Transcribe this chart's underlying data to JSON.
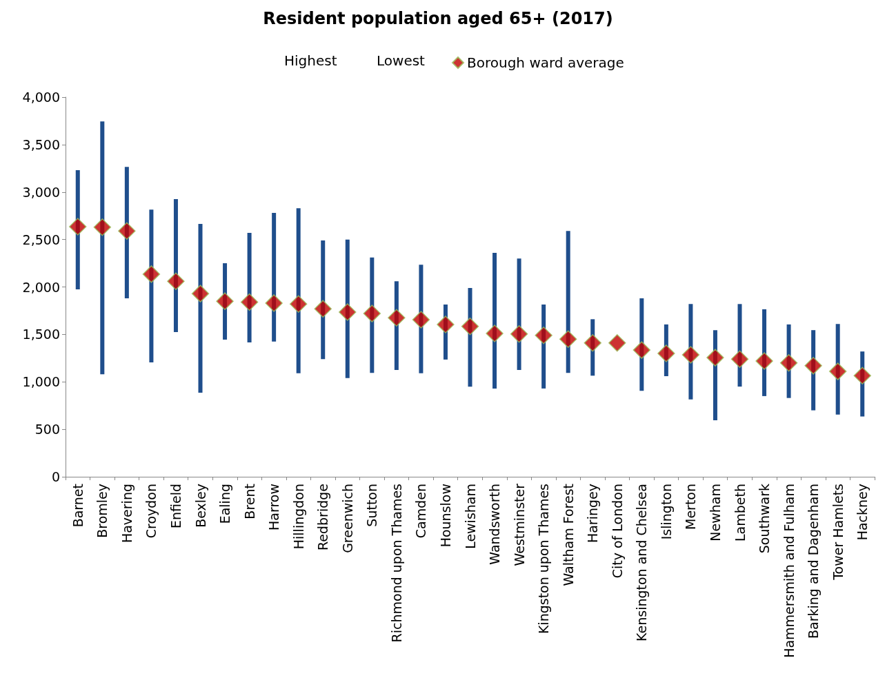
{
  "chart_data": {
    "type": "scatter",
    "title": "Resident population aged 65+ (2017)",
    "annotations": [
      "Highest",
      "Lowest"
    ],
    "categories": [
      "Barnet",
      "Bromley",
      "Havering",
      "Croydon",
      "Enfield",
      "Bexley",
      "Ealing",
      "Brent",
      "Harrow",
      "Hillingdon",
      "Redbridge",
      "Greenwich",
      "Sutton",
      "Richmond upon Thames",
      "Camden",
      "Hounslow",
      "Lewisham",
      "Wandsworth",
      "Westminster",
      "Kingston upon Thames",
      "Waltham Forest",
      "Haringey",
      "City of London",
      "Kensington and Chelsea",
      "Islington",
      "Merton",
      "Newham",
      "Lambeth",
      "Southwark",
      "Hammersmith and Fulham",
      "Barking and Dagenham",
      "Tower Hamlets",
      "Hackney"
    ],
    "series": [
      {
        "type": "bar",
        "color": "#1f4e8c",
        "base": [
          1975,
          1080,
          1880,
          1205,
          1525,
          885,
          1445,
          1415,
          1425,
          1090,
          1240,
          1040,
          1095,
          1125,
          1090,
          1235,
          950,
          930,
          1125,
          930,
          1095,
          1065,
          null,
          905,
          1060,
          815,
          595,
          950,
          850,
          830,
          700,
          655,
          635
        ],
        "values": [
          1255,
          2665,
          1385,
          1610,
          1400,
          1780,
          805,
          1155,
          1355,
          1740,
          1250,
          1460,
          1215,
          935,
          1145,
          580,
          1040,
          1430,
          1175,
          885,
          1495,
          595,
          null,
          975,
          545,
          1005,
          950,
          870,
          915,
          775,
          845,
          955,
          685
        ]
      },
      {
        "name": "Borough ward average",
        "color": "#c00000",
        "marker": "diamond",
        "values": [
          2635,
          2630,
          2590,
          2135,
          2060,
          1930,
          1850,
          1840,
          1830,
          1820,
          1770,
          1735,
          1720,
          1675,
          1655,
          1605,
          1585,
          1510,
          1505,
          1490,
          1450,
          1410,
          1410,
          1335,
          1300,
          1285,
          1255,
          1240,
          1220,
          1200,
          1170,
          1110,
          1065
        ]
      }
    ],
    "ylim": [
      0,
      4000
    ],
    "yticks": [
      0,
      500,
      {
        "value": 1000,
        "label": "1,000"
      },
      {
        "value": 1500,
        "label": "1,500"
      },
      {
        "value": 2000,
        "label": "2,000"
      },
      {
        "value": 2500,
        "label": "2,500"
      },
      {
        "value": 3000,
        "label": "3,000"
      },
      {
        "value": 3500,
        "label": "3,500"
      },
      {
        "value": 4000,
        "label": "4,000"
      }
    ],
    "grid": false,
    "legend": "top"
  }
}
